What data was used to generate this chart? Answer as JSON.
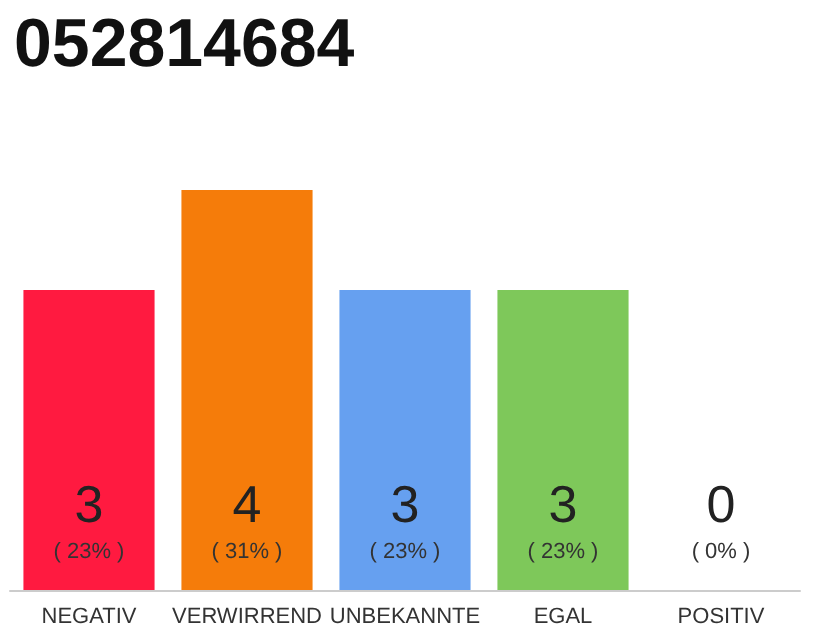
{
  "chart_data": {
    "type": "bar",
    "title": "052814684",
    "categories": [
      "NEGATIV",
      "VERWIRREND",
      "UNBEKANNTE",
      "EGAL",
      "POSITIV"
    ],
    "values": [
      3,
      4,
      3,
      3,
      0
    ],
    "colors": [
      "#ff1a40",
      "#f57c0a",
      "#66a0f0",
      "#7ec85a",
      "#cccccc"
    ],
    "value_labels": [
      "3\n( 23% )",
      "4\n( 31% )",
      "3\n( 23% )",
      "3\n( 23% )",
      "0\n( 0% )"
    ],
    "ylim": [
      0,
      4
    ],
    "grid": false
  }
}
